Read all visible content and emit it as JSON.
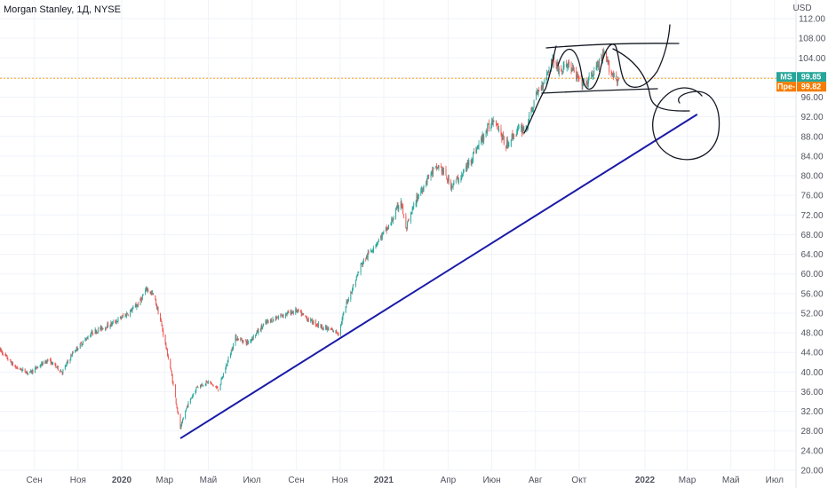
{
  "chart_data": {
    "type": "candlestick",
    "title": "Morgan Stanley, 1Д, NYSE",
    "currency": "USD",
    "y_ticks": [
      20,
      24,
      28,
      32,
      36,
      40,
      44,
      48,
      52,
      56,
      60,
      64,
      68,
      72,
      76,
      80,
      84,
      88,
      92,
      96,
      100,
      104,
      108,
      112
    ],
    "y_tick_labels": [
      "20.00",
      "24.00",
      "28.00",
      "32.00",
      "36.00",
      "40.00",
      "44.00",
      "48.00",
      "52.00",
      "56.00",
      "60.00",
      "64.00",
      "68.00",
      "72.00",
      "76.00",
      "80.00",
      "84.00",
      "88.00",
      "92.00",
      "96.00",
      "100.00",
      "104.00",
      "108.00",
      "112.00"
    ],
    "ylim": [
      20,
      112
    ],
    "x_axis": {
      "start": "2019-07-15",
      "end": "2022-07-31",
      "ticks": [
        {
          "date": "2019-09-01",
          "label": "Сен",
          "bold": false
        },
        {
          "date": "2019-11-01",
          "label": "Ноя",
          "bold": false
        },
        {
          "date": "2020-01-01",
          "label": "2020",
          "bold": true
        },
        {
          "date": "2020-03-01",
          "label": "Мар",
          "bold": false
        },
        {
          "date": "2020-05-01",
          "label": "Май",
          "bold": false
        },
        {
          "date": "2020-07-01",
          "label": "Июл",
          "bold": false
        },
        {
          "date": "2020-09-01",
          "label": "Сен",
          "bold": false
        },
        {
          "date": "2020-11-01",
          "label": "Ноя",
          "bold": false
        },
        {
          "date": "2021-01-01",
          "label": "2021",
          "bold": true
        },
        {
          "date": "2021-04-01",
          "label": "Апр",
          "bold": false
        },
        {
          "date": "2021-06-01",
          "label": "Июн",
          "bold": false
        },
        {
          "date": "2021-08-01",
          "label": "Авг",
          "bold": false
        },
        {
          "date": "2021-10-01",
          "label": "Окт",
          "bold": false
        },
        {
          "date": "2022-01-01",
          "label": "2022",
          "bold": true
        },
        {
          "date": "2022-03-01",
          "label": "Мар",
          "bold": false
        },
        {
          "date": "2022-05-01",
          "label": "Май",
          "bold": false
        },
        {
          "date": "2022-07-01",
          "label": "Июл",
          "bold": false
        }
      ]
    },
    "price_path": [
      [
        "2019-07-15",
        44.5
      ],
      [
        "2019-08-05",
        41.0
      ],
      [
        "2019-08-25",
        39.8
      ],
      [
        "2019-09-20",
        42.5
      ],
      [
        "2019-10-10",
        40.0
      ],
      [
        "2019-10-25",
        44.0
      ],
      [
        "2019-11-20",
        48.0
      ],
      [
        "2019-12-20",
        50.0
      ],
      [
        "2020-01-10",
        52.0
      ],
      [
        "2020-01-25",
        54.0
      ],
      [
        "2020-02-05",
        57.0
      ],
      [
        "2020-02-15",
        55.5
      ],
      [
        "2020-02-25",
        50.0
      ],
      [
        "2020-03-10",
        40.0
      ],
      [
        "2020-03-23",
        28.5
      ],
      [
        "2020-04-01",
        33.0
      ],
      [
        "2020-04-15",
        37.0
      ],
      [
        "2020-05-01",
        38.0
      ],
      [
        "2020-05-15",
        36.5
      ],
      [
        "2020-06-08",
        47.0
      ],
      [
        "2020-06-25",
        46.0
      ],
      [
        "2020-07-20",
        50.0
      ],
      [
        "2020-08-10",
        51.5
      ],
      [
        "2020-09-01",
        52.5
      ],
      [
        "2020-09-20",
        50.5
      ],
      [
        "2020-10-10",
        49.0
      ],
      [
        "2020-10-30",
        48.0
      ],
      [
        "2020-11-10",
        54.0
      ],
      [
        "2020-12-01",
        62.0
      ],
      [
        "2020-12-20",
        66.0
      ],
      [
        "2021-01-10",
        70.0
      ],
      [
        "2021-01-25",
        75.0
      ],
      [
        "2021-02-01",
        69.0
      ],
      [
        "2021-02-15",
        75.0
      ],
      [
        "2021-03-05",
        80.0
      ],
      [
        "2021-03-20",
        82.0
      ],
      [
        "2021-04-05",
        78.0
      ],
      [
        "2021-04-20",
        80.0
      ],
      [
        "2021-05-05",
        84.0
      ],
      [
        "2021-05-20",
        88.0
      ],
      [
        "2021-06-05",
        92.0
      ],
      [
        "2021-06-20",
        86.0
      ],
      [
        "2021-07-05",
        89.0
      ],
      [
        "2021-07-20",
        90.0
      ],
      [
        "2021-08-01",
        96.0
      ],
      [
        "2021-08-15",
        100.0
      ],
      [
        "2021-08-25",
        104.0
      ],
      [
        "2021-09-05",
        101.0
      ],
      [
        "2021-09-15",
        103.0
      ],
      [
        "2021-09-28",
        100.0
      ],
      [
        "2021-10-10",
        98.5
      ],
      [
        "2021-10-25",
        102.0
      ],
      [
        "2021-11-05",
        104.5
      ],
      [
        "2021-11-15",
        101.0
      ],
      [
        "2021-11-25",
        99.5
      ]
    ],
    "price_tags": [
      {
        "label": "MS",
        "value_text": "99.85",
        "value": 99.85,
        "color": "#26a69a"
      },
      {
        "label": "Пре-",
        "value_text": "99.82",
        "value": 99.82,
        "color": "#f57c00"
      }
    ],
    "price_line_value": 99.85,
    "trendline": {
      "start": [
        "2020-03-23",
        26.5
      ],
      "end": [
        "2022-03-15",
        92.5
      ],
      "color": "#1a1aa8"
    },
    "colors": {
      "up": "#26a69a",
      "down": "#ef5350",
      "grid": "#f0f3fa",
      "ink": "#131722"
    }
  }
}
